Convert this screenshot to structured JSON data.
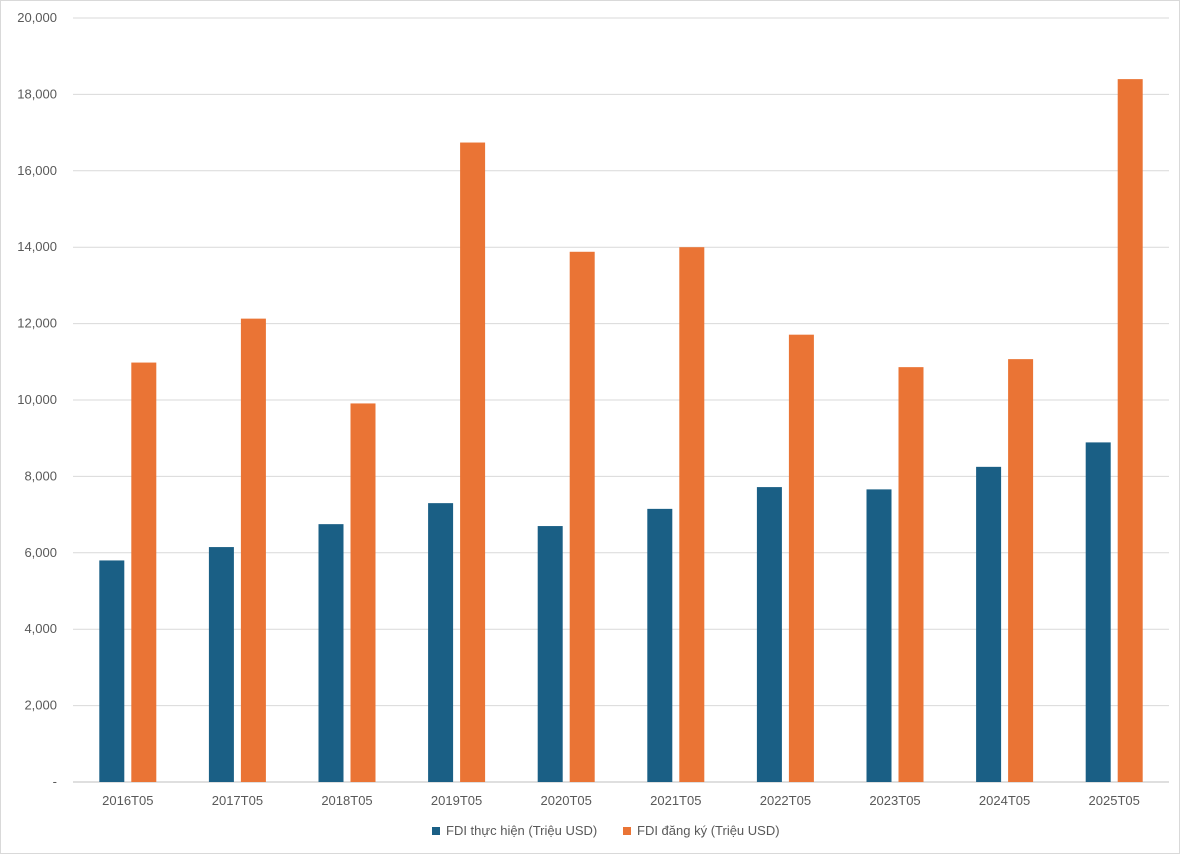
{
  "chart_data": {
    "type": "bar",
    "title": "",
    "xlabel": "",
    "ylabel": "",
    "categories": [
      "2016T05",
      "2017T05",
      "2018T05",
      "2019T05",
      "2020T05",
      "2021T05",
      "2022T05",
      "2023T05",
      "2024T05",
      "2025T05"
    ],
    "series": [
      {
        "name": "FDI thực hiện (Triệu USD)",
        "color": "#1a5f85",
        "values": [
          5800,
          6150,
          6750,
          7300,
          6700,
          7150,
          7720,
          7660,
          8250,
          8890
        ]
      },
      {
        "name": "FDI đăng ký (Triệu USD)",
        "color": "#ea7435",
        "values": [
          10980,
          12130,
          9910,
          16740,
          13880,
          14000,
          11710,
          10860,
          11070,
          18400
        ]
      }
    ],
    "ylim": [
      0,
      20000
    ],
    "yticks": [
      0,
      2000,
      4000,
      6000,
      8000,
      10000,
      12000,
      14000,
      16000,
      18000,
      20000
    ],
    "ytick_labels": [
      "-",
      "2,000",
      "4,000",
      "6,000",
      "8,000",
      "10,000",
      "12,000",
      "14,000",
      "16,000",
      "18,000",
      "20,000"
    ],
    "grid": true,
    "legend_position": "bottom"
  }
}
